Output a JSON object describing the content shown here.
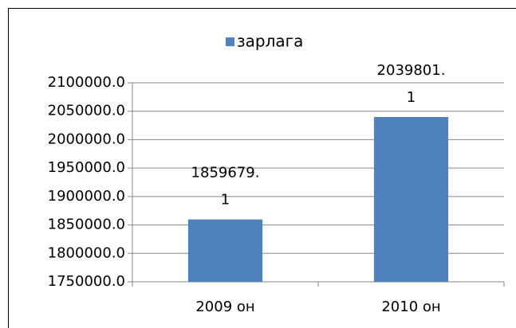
{
  "chart_data": {
    "type": "bar",
    "categories": [
      "2009 он",
      "2010 он"
    ],
    "series": [
      {
        "name": "зарлага",
        "color": "#4f81bd",
        "values": [
          1859679.1,
          2039801.1
        ]
      }
    ],
    "ylim": [
      1750000,
      2100000
    ],
    "yticks": [
      {
        "value": 1750000,
        "label": "1750000.0"
      },
      {
        "value": 1800000,
        "label": "1800000.0"
      },
      {
        "value": 1850000,
        "label": "1850000.0"
      },
      {
        "value": 1900000,
        "label": "1900000.0"
      },
      {
        "value": 1950000,
        "label": "1950000.0"
      },
      {
        "value": 2000000,
        "label": "2000000.0"
      },
      {
        "value": 2050000,
        "label": "2050000.0"
      },
      {
        "value": 2100000,
        "label": "2100000.0"
      }
    ],
    "grid": true,
    "legend": "top"
  }
}
